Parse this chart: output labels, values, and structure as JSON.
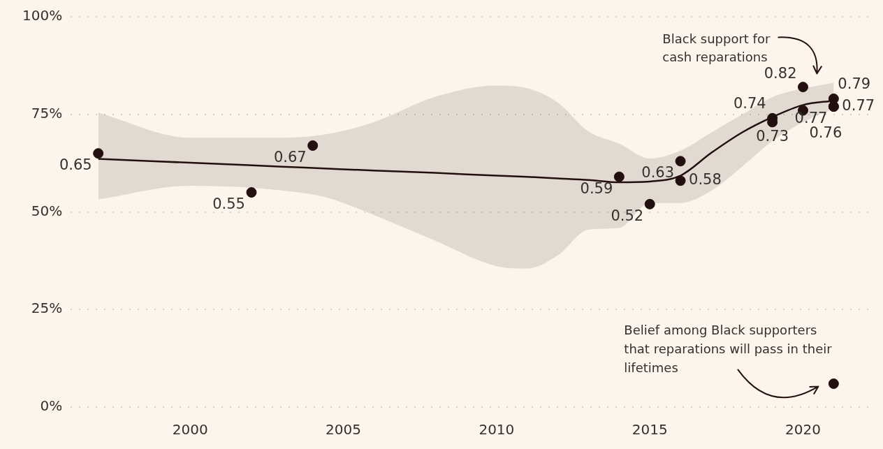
{
  "chart_data": {
    "type": "scatter",
    "xlim": [
      1996.1,
      2022.2
    ],
    "xticks": [
      2000,
      2005,
      2010,
      2015,
      2020
    ],
    "ylim": [
      0,
      1
    ],
    "yticks": [
      {
        "value": 0,
        "label": "0%"
      },
      {
        "value": 0.25,
        "label": "25%"
      },
      {
        "value": 0.5,
        "label": "50%"
      },
      {
        "value": 0.75,
        "label": "75%"
      },
      {
        "value": 1,
        "label": "100%"
      }
    ],
    "grid": "y",
    "series": [
      {
        "type": "line",
        "color": "#231010",
        "x": [
          1997,
          2000,
          2003,
          2004.5,
          2006,
          2008,
          2010,
          2011,
          2012,
          2013,
          2014,
          2015,
          2016,
          2017,
          2018,
          2019,
          2020,
          2021
        ],
        "values": [
          0.636,
          0.626,
          0.616,
          0.611,
          0.606,
          0.6,
          0.593,
          0.59,
          0.586,
          0.582,
          0.576,
          0.578,
          0.593,
          0.651,
          0.703,
          0.743,
          0.774,
          0.785
        ],
        "upper": [
          0.754,
          0.69,
          0.69,
          0.7,
          0.73,
          0.795,
          0.824,
          0.817,
          0.78,
          0.706,
          0.675,
          0.637,
          0.657,
          0.703,
          0.749,
          0.794,
          0.816,
          0.831
        ],
        "lower": [
          0.532,
          0.567,
          0.555,
          0.536,
          0.492,
          0.426,
          0.361,
          0.355,
          0.389,
          0.455,
          0.459,
          0.523,
          0.523,
          0.554,
          0.615,
          0.682,
          0.73,
          0.765
        ]
      },
      {
        "type": "scatter",
        "color": "#231010",
        "x": [
          1997,
          2002,
          2004,
          2014,
          2015,
          2016,
          2016,
          2019,
          2019,
          2020,
          2020,
          2021,
          2021,
          2021
        ],
        "values": [
          0.65,
          0.55,
          0.67,
          0.59,
          0.52,
          0.63,
          0.58,
          0.74,
          0.73,
          0.82,
          0.76,
          0.79,
          0.77,
          0.77
        ],
        "value_labels": [
          "0.65",
          "0.55",
          "0.67",
          "0.59",
          "0.52",
          "0.63",
          "0.58",
          "0.74",
          "0.73",
          "0.82",
          "0.76",
          "0.79",
          "0.77",
          "0.77"
        ]
      },
      {
        "type": "scatter",
        "color": "#231010",
        "x": [
          2021
        ],
        "values": [
          0.06
        ]
      }
    ],
    "annotations": [
      "Black support for cash reparations",
      "Belief among Black supporters that reparations will pass in their lifetimes"
    ]
  }
}
